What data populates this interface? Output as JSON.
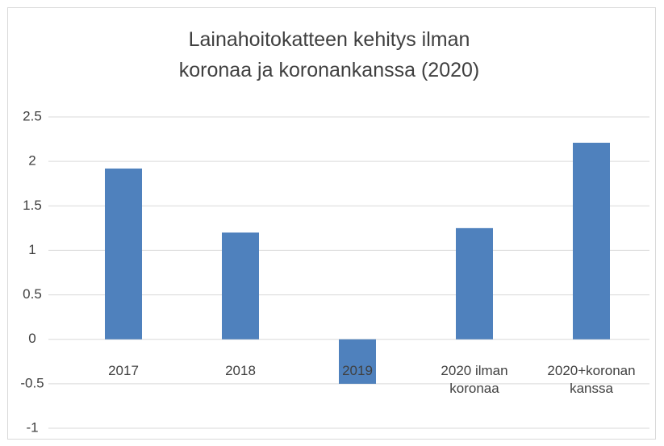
{
  "chart_data": {
    "type": "bar",
    "title": "Lainahoitokatteen kehitys ilman koronaa ja koronankanssa (2020)",
    "categories": [
      "2017",
      "2018",
      "2019",
      "2020 ilman koronaa",
      "2020+koronan kanssa"
    ],
    "values": [
      1.92,
      1.2,
      -0.5,
      1.25,
      2.21
    ],
    "color": "#4f81bd",
    "ylim": [
      -1,
      2.5
    ],
    "yticks": [
      -1,
      -0.5,
      0,
      0.5,
      1,
      1.5,
      2,
      2.5
    ],
    "grid": true
  }
}
